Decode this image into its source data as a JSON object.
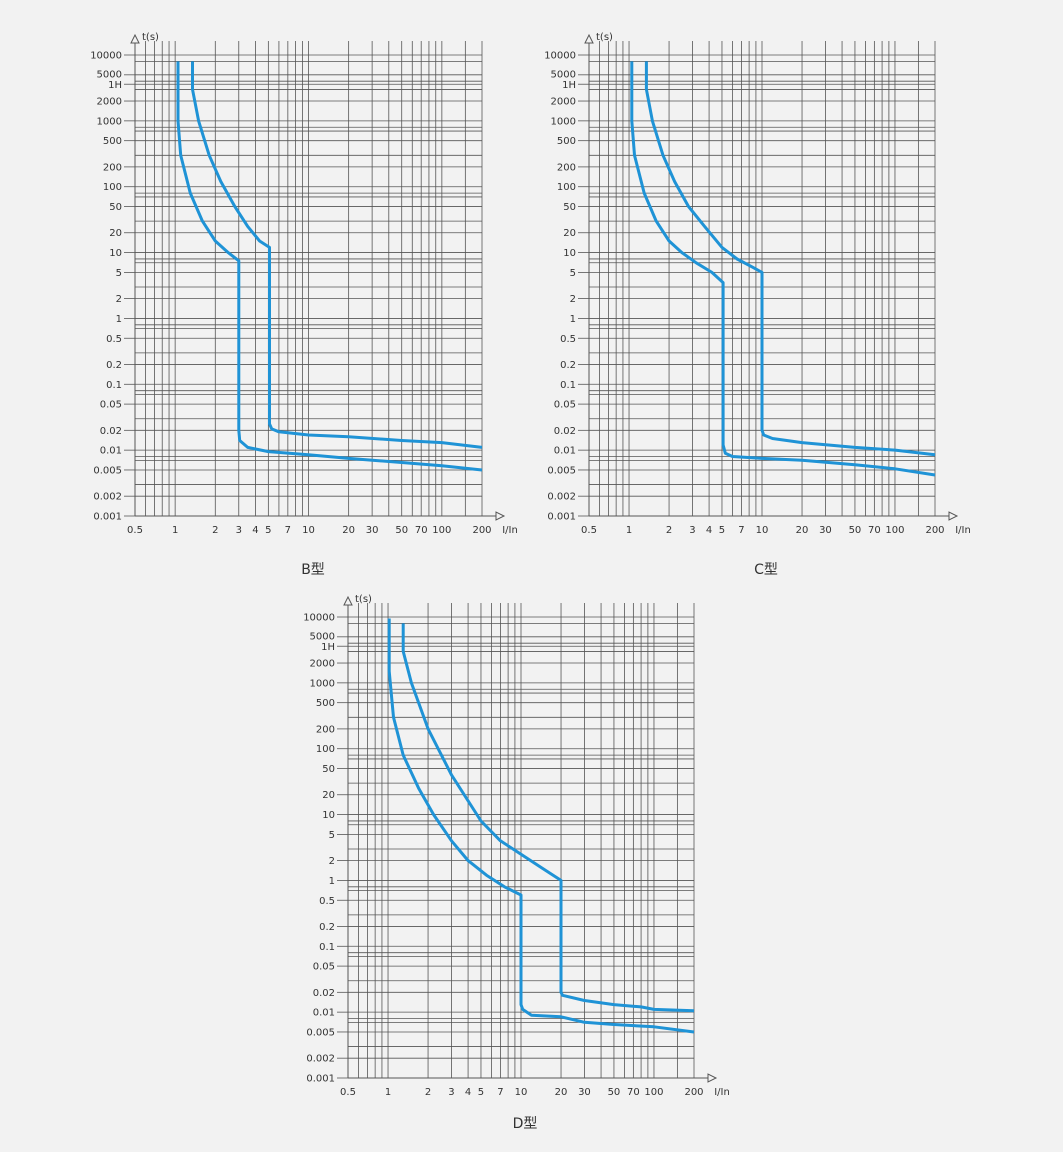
{
  "chart_data": [
    {
      "type": "line",
      "caption": "B型",
      "ylabel": "t(s)",
      "xlabel": "I/In",
      "x_ticks": [
        "0.5",
        "1",
        "2",
        "3",
        "4",
        "5",
        "7",
        "10",
        "20",
        "30",
        "50",
        "70",
        "100",
        "200"
      ],
      "y_ticks": [
        "10000",
        "5000",
        "1H",
        "2000",
        "1000",
        "500",
        "200",
        "100",
        "50",
        "20",
        "10",
        "5",
        "2",
        "1",
        "0.5",
        "0.2",
        "0.1",
        "0.05",
        "0.02",
        "0.01",
        "0.005",
        "0.002",
        "0.001"
      ],
      "xlim": [
        1,
        200
      ],
      "ylim": [
        0.001,
        10000
      ],
      "series": [
        {
          "x": [
            1.05,
            1.05,
            1.1,
            1.3,
            1.6,
            2,
            2.5,
            3,
            3,
            3,
            3.05,
            3.5,
            5,
            10,
            20,
            50,
            100,
            200
          ],
          "y": [
            8000,
            1000,
            300,
            80,
            30,
            15,
            10,
            7.5,
            1,
            0.02,
            0.014,
            0.011,
            0.0095,
            0.0085,
            0.0075,
            0.0065,
            0.0058,
            0.005
          ]
        },
        {
          "x": [
            1.35,
            1.35,
            1.5,
            1.8,
            2.2,
            2.8,
            3.5,
            4.3,
            5.1,
            5.1,
            5.1,
            5.3,
            6,
            10,
            20,
            50,
            100,
            200
          ],
          "y": [
            8000,
            3000,
            1000,
            300,
            120,
            50,
            25,
            15,
            12,
            1,
            0.025,
            0.021,
            0.019,
            0.017,
            0.016,
            0.014,
            0.013,
            0.011
          ]
        }
      ],
      "colors": {
        "curve": "#1f93d6",
        "grid": "#555555",
        "bg": "#f2f2f2"
      }
    },
    {
      "type": "line",
      "caption": "C型",
      "ylabel": "t(s)",
      "xlabel": "I/In",
      "x_ticks": [
        "0.5",
        "1",
        "2",
        "3",
        "4",
        "5",
        "7",
        "10",
        "20",
        "30",
        "50",
        "70",
        "100",
        "200"
      ],
      "y_ticks": [
        "10000",
        "5000",
        "1H",
        "2000",
        "1000",
        "500",
        "200",
        "100",
        "50",
        "20",
        "10",
        "5",
        "2",
        "1",
        "0.5",
        "0.2",
        "0.1",
        "0.05",
        "0.02",
        "0.01",
        "0.005",
        "0.002",
        "0.001"
      ],
      "xlim": [
        1,
        200
      ],
      "ylim": [
        0.001,
        10000
      ],
      "series": [
        {
          "x": [
            1.05,
            1.05,
            1.1,
            1.3,
            1.6,
            2,
            2.5,
            3.2,
            4.2,
            5.1,
            5.1,
            5.1,
            5.3,
            6,
            10,
            20,
            50,
            100,
            200
          ],
          "y": [
            8000,
            1000,
            300,
            80,
            30,
            15,
            10,
            7,
            5,
            3.5,
            1,
            0.012,
            0.009,
            0.008,
            0.0075,
            0.007,
            0.006,
            0.0052,
            0.0042
          ]
        },
        {
          "x": [
            1.35,
            1.35,
            1.5,
            1.8,
            2.2,
            2.8,
            3.7,
            5,
            6.5,
            8.5,
            10,
            10,
            10,
            10.3,
            12,
            20,
            50,
            100,
            200
          ],
          "y": [
            8000,
            3000,
            1000,
            300,
            120,
            50,
            25,
            12,
            8,
            6,
            5,
            1,
            0.02,
            0.017,
            0.015,
            0.013,
            0.011,
            0.01,
            0.0085
          ]
        }
      ],
      "colors": {
        "curve": "#1f93d6",
        "grid": "#555555",
        "bg": "#f2f2f2"
      }
    },
    {
      "type": "line",
      "caption": "D型",
      "ylabel": "t(s)",
      "xlabel": "I/In",
      "x_ticks": [
        "0.5",
        "1",
        "2",
        "3",
        "4",
        "5",
        "7",
        "10",
        "20",
        "30",
        "50",
        "70",
        "100",
        "200"
      ],
      "y_ticks": [
        "10000",
        "5000",
        "1H",
        "2000",
        "1000",
        "500",
        "200",
        "100",
        "50",
        "20",
        "10",
        "5",
        "2",
        "1",
        "0.5",
        "0.2",
        "0.1",
        "0.05",
        "0.02",
        "0.01",
        "0.005",
        "0.002",
        "0.001"
      ],
      "xlim": [
        1,
        200
      ],
      "ylim": [
        0.001,
        10000
      ],
      "series": [
        {
          "x": [
            1.02,
            1.02,
            1.1,
            1.3,
            1.7,
            2.2,
            3,
            4,
            5.5,
            7.5,
            10,
            10,
            10,
            10.3,
            12,
            20,
            30,
            50,
            100,
            200
          ],
          "y": [
            9500,
            1500,
            300,
            80,
            25,
            10,
            4,
            2,
            1.2,
            0.8,
            0.6,
            0.3,
            0.013,
            0.011,
            0.009,
            0.0085,
            0.007,
            0.0065,
            0.006,
            0.005
          ]
        },
        {
          "x": [
            1.3,
            1.3,
            1.5,
            2,
            3,
            5,
            7,
            10,
            14,
            20,
            20,
            20,
            20.5,
            30,
            50,
            80,
            100,
            200
          ],
          "y": [
            8000,
            3000,
            1000,
            200,
            40,
            8,
            4,
            2.5,
            1.6,
            1,
            0.5,
            0.02,
            0.018,
            0.015,
            0.013,
            0.012,
            0.011,
            0.0105
          ]
        }
      ],
      "colors": {
        "curve": "#1f93d6",
        "grid": "#555555",
        "bg": "#f2f2f2"
      }
    }
  ]
}
